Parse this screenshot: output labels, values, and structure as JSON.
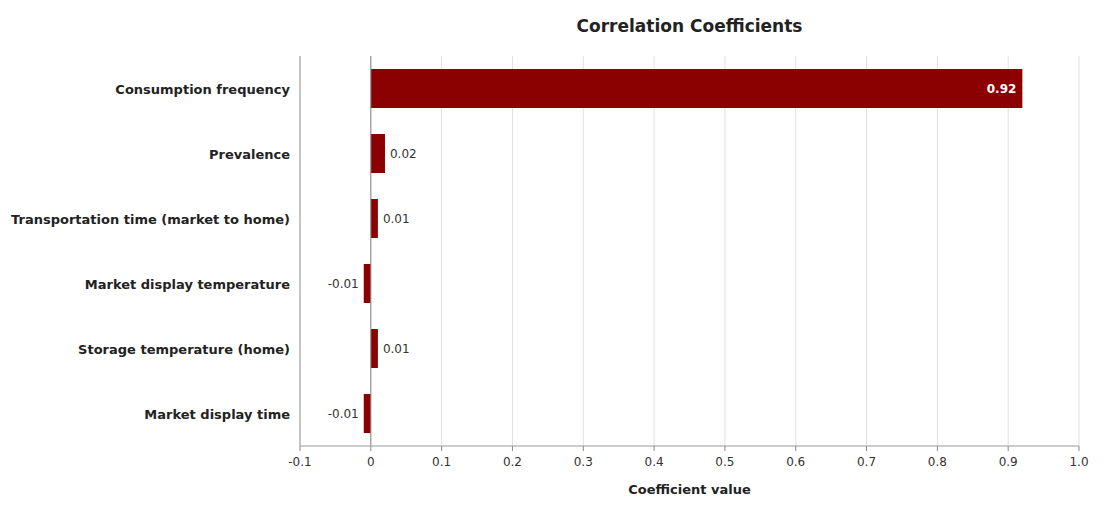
{
  "chart_data": {
    "type": "bar",
    "orientation": "horizontal",
    "title": "Correlation Coefficients",
    "xlabel": "Coefficient value",
    "categories": [
      "Market display time",
      "Storage temperature (home)",
      "Market display temperature",
      "Transportation time (market to home)",
      "Prevalence",
      "Consumption frequency"
    ],
    "values": [
      -0.01,
      0.01,
      -0.01,
      0.01,
      0.02,
      0.92
    ],
    "color": "#8B0000",
    "xlim": [
      -0.1,
      1.0
    ],
    "xticks": [
      -0.1,
      0,
      0.1,
      0.2,
      0.3,
      0.4,
      0.5,
      0.6,
      0.7,
      0.8,
      0.9,
      {
        "value": 1.0,
        "label": "1.0"
      }
    ],
    "grid": true,
    "data_labels": true
  }
}
